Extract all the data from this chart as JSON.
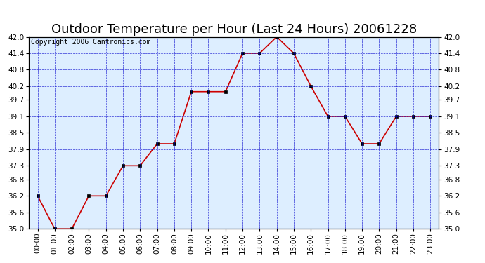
{
  "title": "Outdoor Temperature per Hour (Last 24 Hours) 20061228",
  "copyright": "Copyright 2006 Cantronics.com",
  "hours": [
    "00:00",
    "01:00",
    "02:00",
    "03:00",
    "04:00",
    "05:00",
    "06:00",
    "07:00",
    "08:00",
    "09:00",
    "10:00",
    "11:00",
    "12:00",
    "13:00",
    "14:00",
    "15:00",
    "16:00",
    "17:00",
    "18:00",
    "19:00",
    "20:00",
    "21:00",
    "22:00",
    "23:00"
  ],
  "temperatures": [
    36.2,
    35.0,
    35.0,
    36.2,
    36.2,
    37.3,
    37.3,
    38.1,
    38.1,
    40.0,
    40.0,
    40.0,
    41.4,
    41.4,
    42.0,
    41.4,
    40.2,
    39.1,
    39.1,
    38.1,
    38.1,
    39.1,
    39.1,
    39.1
  ],
  "ylim_min": 35.0,
  "ylim_max": 42.0,
  "yticks": [
    35.0,
    35.6,
    36.2,
    36.8,
    37.3,
    37.9,
    38.5,
    39.1,
    39.7,
    40.2,
    40.8,
    41.4,
    42.0
  ],
  "line_color": "#cc0000",
  "marker_color": "#000000",
  "bg_color": "#ffffff",
  "plot_bg": "#ddeeff",
  "grid_color": "#0000cc",
  "title_fontsize": 13,
  "copyright_fontsize": 7,
  "tick_fontsize": 7.5,
  "border_color": "#000000"
}
